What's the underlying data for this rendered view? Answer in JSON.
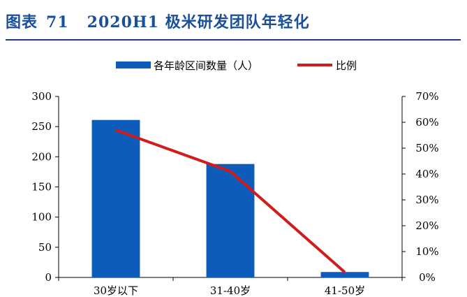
{
  "title": {
    "label": "图表",
    "number": "71",
    "text": "2020H1 极米研发团队年轻化"
  },
  "colors": {
    "title": "#1a4f9c",
    "bar": "#0d5cba",
    "line": "#d01c1c",
    "rule": "#1f3c88"
  },
  "chart_data": {
    "type": "bar",
    "categories": [
      "30岁以下",
      "31-40岁",
      "41-50岁"
    ],
    "series": [
      {
        "name": "各年龄区间数量（人）",
        "type": "bar",
        "axis": "left",
        "values": [
          261,
          188,
          9
        ]
      },
      {
        "name": "比例",
        "type": "line",
        "axis": "right",
        "values": [
          0.57,
          0.41,
          0.02
        ]
      }
    ],
    "yleft": {
      "ticks": [
        "0",
        "50",
        "100",
        "150",
        "200",
        "250",
        "300"
      ],
      "ylim": [
        0,
        300
      ]
    },
    "yright": {
      "ticks": [
        "0%",
        "10%",
        "20%",
        "30%",
        "40%",
        "50%",
        "60%",
        "70%"
      ],
      "ylim": [
        0,
        0.7
      ]
    },
    "grid": false,
    "legend": "top-center"
  }
}
